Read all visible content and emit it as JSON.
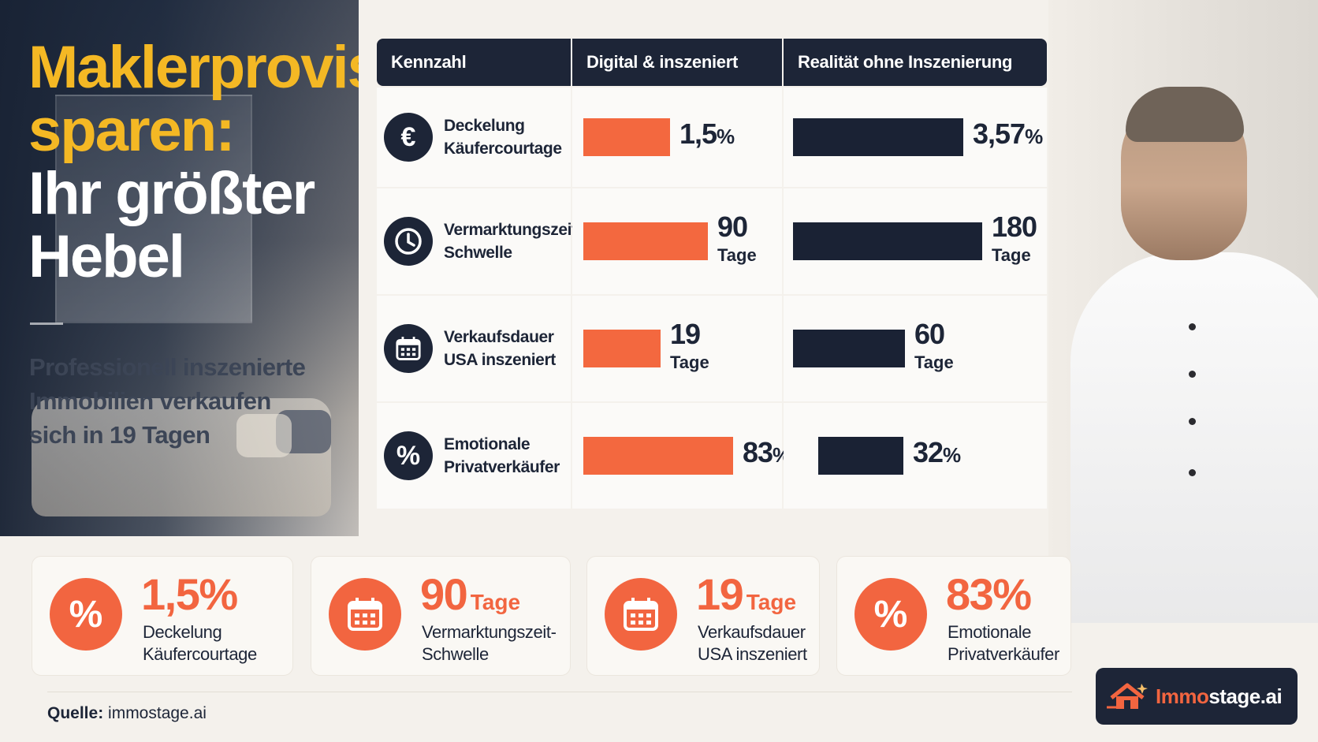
{
  "hero": {
    "title_line1": "Maklerprovision",
    "title_line2": "sparen:",
    "title_line3": "Ihr größter",
    "title_line4": "Hebel",
    "subtitle_line1": "Professionell inszenierte",
    "subtitle_line2": "Immobilien verkaufen",
    "subtitle_line3": "sich in 19 Tagen"
  },
  "table": {
    "headers": [
      "Kennzahl",
      "Digital & inszeniert",
      "Realität ohne Inszenierung"
    ],
    "rows": [
      {
        "icon": "euro-icon",
        "label_line1": "Deckelung",
        "label_line2": "Käufercourtage",
        "digital_value": "1,5",
        "digital_unit": "%",
        "real_value": "3,57",
        "real_unit": "%"
      },
      {
        "icon": "clock-icon",
        "label_line1": "Vermarktungszeit-",
        "label_line2": "Schwelle",
        "digital_value": "90",
        "digital_unit": "Tage",
        "real_value": "180",
        "real_unit": "Tage"
      },
      {
        "icon": "calendar-icon",
        "label_line1": "Verkaufsdauer",
        "label_line2": "USA inszeniert",
        "digital_value": "19",
        "digital_unit": "Tage",
        "real_value": "60",
        "real_unit": "Tage"
      },
      {
        "icon": "percent-icon",
        "label_line1": "Emotionale",
        "label_line2": "Privatverkäufer",
        "digital_value": "83",
        "digital_unit": "%",
        "real_value": "32",
        "real_unit": "%"
      }
    ]
  },
  "chart_data": {
    "type": "bar",
    "categories": [
      "Deckelung Käufercourtage",
      "Vermarktungszeit-Schwelle",
      "Verkaufsdauer USA inszeniert",
      "Emotionale Privatverkäufer"
    ],
    "series": [
      {
        "name": "Digital & inszeniert",
        "values": [
          1.5,
          90,
          19,
          83
        ]
      },
      {
        "name": "Realität ohne Inszenierung",
        "values": [
          3.57,
          180,
          60,
          32
        ]
      }
    ],
    "units": [
      "%",
      "Tage",
      "Tage",
      "%"
    ],
    "colors": {
      "digital": "#f3683f",
      "real": "#1a2234"
    }
  },
  "stats": [
    {
      "icon": "percent-icon",
      "value": "1,5",
      "unit": "%",
      "label_line1": "Deckelung",
      "label_line2": "Käufercourtage"
    },
    {
      "icon": "calendar-icon",
      "value": "90",
      "unit": "Tage",
      "label_line1": "Vermarktungszeit-",
      "label_line2": "Schwelle"
    },
    {
      "icon": "calendar-icon",
      "value": "19",
      "unit": "Tage",
      "label_line1": "Verkaufsdauer",
      "label_line2": "USA inszeniert"
    },
    {
      "icon": "percent-icon",
      "value": "83",
      "unit": "%",
      "label_line1": "Emotionale",
      "label_line2": "Privatverkäufer"
    }
  ],
  "footer": {
    "source_label": "Quelle:",
    "source_value": "immostage.ai"
  },
  "logo": {
    "text_prefix": "Immo",
    "text_suffix": "stage.ai"
  }
}
